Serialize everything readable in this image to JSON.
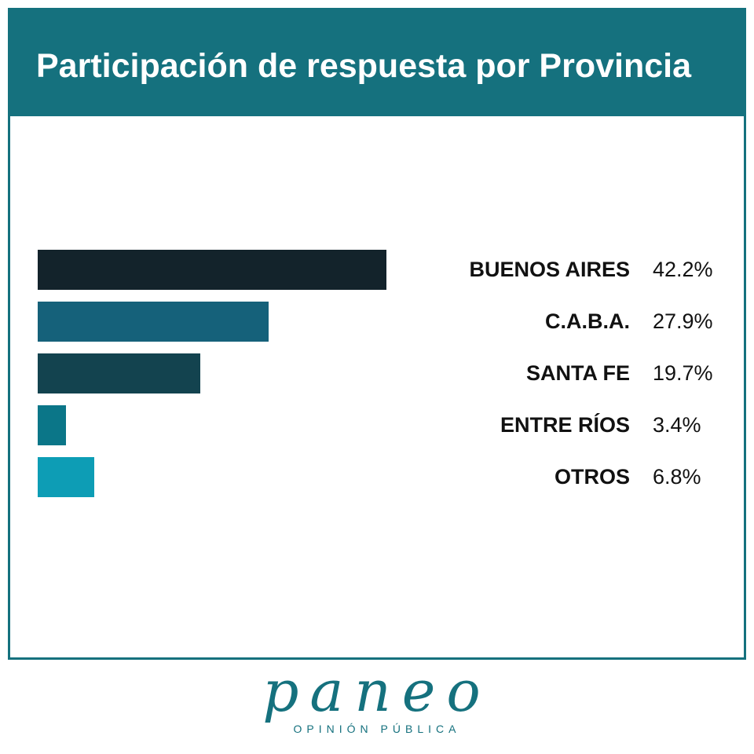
{
  "chart_data": {
    "type": "bar",
    "orientation": "horizontal",
    "title": "Participación de respuesta por Provincia",
    "categories": [
      "BUENOS AIRES",
      "C.A.B.A.",
      "SANTA FE",
      "ENTRE RÍOS",
      "OTROS"
    ],
    "values": [
      42.2,
      27.9,
      19.7,
      3.4,
      6.8
    ],
    "value_labels": [
      "42.2%",
      "27.9%",
      "19.7%",
      "3.4%",
      "6.8%"
    ],
    "bar_colors": [
      "#13232b",
      "#15617a",
      "#13434f",
      "#0b7688",
      "#0d9db5"
    ],
    "grid": false,
    "legend": "none"
  },
  "colors": {
    "accent": "#15717e",
    "background": "#ffffff"
  },
  "brand": {
    "logo": "paneo",
    "tagline": "OPINIÓN PÚBLICA"
  }
}
